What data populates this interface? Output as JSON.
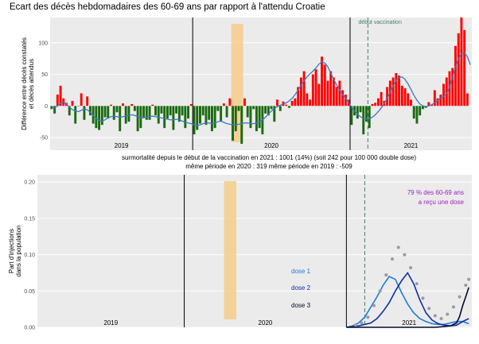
{
  "title": "Ecart des décès hebdomadaires des 60-69 ans par rapport à l'attendu Croatie",
  "colors": {
    "excess": "#ff0000",
    "deficit": "#1a6a0f",
    "smooth": "#3a78c8",
    "vacc_band": "#f5cc8a",
    "vacc_line": "#3f8070",
    "dose1": "#1d7bd6",
    "dose2": "#1030a0",
    "dose3": "#050a30",
    "dots": "#9a9a9a",
    "pct": "#a020c0",
    "panel": "#ebebeb",
    "grid": "#ffffff"
  },
  "chart_data": [
    {
      "type": "bar",
      "ylabel": [
        "Différence entre décès constatés",
        "et décès attendus"
      ],
      "ylim": [
        -70,
        140
      ],
      "yticks": [
        -50,
        0,
        50,
        100
      ],
      "year_labels": [
        "2019",
        "2020",
        "2021"
      ],
      "week_range": [
        0,
        142
      ],
      "vline_weeks": [
        48,
        101
      ],
      "vacc_band_weeks": [
        61,
        65
      ],
      "vacc_line_week": 107,
      "annotation": "début vaccination",
      "values": [
        -5,
        -12,
        18,
        32,
        12,
        5,
        -15,
        8,
        -28,
        0,
        20,
        -22,
        15,
        -15,
        -28,
        -35,
        -38,
        -30,
        -18,
        -20,
        2,
        -22,
        -10,
        -40,
        4,
        -28,
        -25,
        3,
        -8,
        -40,
        -35,
        -18,
        -22,
        -22,
        2,
        -15,
        -28,
        -12,
        -35,
        -20,
        -15,
        -38,
        -12,
        -25,
        -15,
        -35,
        -20,
        3,
        -45,
        -38,
        -28,
        -15,
        -30,
        -22,
        -40,
        -35,
        -8,
        -25,
        4,
        -18,
        12,
        -55,
        -40,
        -8,
        -60,
        12,
        -18,
        -35,
        -5,
        -40,
        -35,
        -45,
        -12,
        -15,
        -5,
        -25,
        10,
        -8,
        7,
        2,
        -3,
        8,
        12,
        30,
        45,
        55,
        20,
        10,
        50,
        58,
        35,
        78,
        65,
        40,
        55,
        45,
        30,
        40,
        25,
        18,
        10,
        -30,
        -15,
        -20,
        -10,
        -45,
        -25,
        -35,
        3,
        5,
        12,
        22,
        8,
        30,
        40,
        45,
        52,
        48,
        32,
        28,
        20,
        10,
        -20,
        -28,
        -15,
        -5,
        -3,
        6,
        2,
        25,
        12,
        18,
        35,
        45,
        55,
        60,
        95,
        115,
        140,
        120,
        20
      ],
      "smooth": [
        -2,
        -3,
        0,
        4,
        6,
        3,
        -2,
        -6,
        -8,
        -9,
        -7,
        -5,
        -6,
        -10,
        -15,
        -20,
        -23,
        -24,
        -22,
        -19,
        -17,
        -16,
        -17,
        -18,
        -17,
        -16,
        -15,
        -14,
        -15,
        -17,
        -19,
        -19,
        -18,
        -17,
        -16,
        -17,
        -18,
        -19,
        -20,
        -21,
        -22,
        -22,
        -21,
        -22,
        -24,
        -26,
        -27,
        -28,
        -30,
        -31,
        -30,
        -28,
        -27,
        -27,
        -28,
        -27,
        -25,
        -24,
        -26,
        -28,
        -29,
        -30,
        -30,
        -29,
        -28,
        -27,
        -27,
        -28,
        -28,
        -27,
        -25,
        -22,
        -18,
        -13,
        -8,
        -4,
        -1,
        1,
        3,
        5,
        8,
        12,
        18,
        25,
        33,
        40,
        46,
        51,
        55,
        60,
        66,
        70,
        68,
        62,
        52,
        42,
        33,
        25,
        18,
        12,
        5,
        -2,
        -8,
        -13,
        -17,
        -20,
        -21,
        -20,
        -18,
        -14,
        -9,
        -3,
        4,
        12,
        22,
        32,
        40,
        45,
        46,
        42,
        35,
        26,
        17,
        9,
        3,
        0,
        -1,
        0,
        2,
        5,
        9,
        12,
        15,
        20,
        30,
        45,
        62,
        75,
        83,
        84,
        78,
        65
      ]
    },
    {
      "type": "line",
      "ylabel": [
        "Part d'injections",
        "dans la population"
      ],
      "ylim": [
        0,
        0.21
      ],
      "yticks": [
        0.0,
        0.05,
        0.1,
        0.15,
        0.2
      ],
      "ytick_labels": [
        "0.00",
        "0.05",
        "0.10",
        "0.15",
        "0.20"
      ],
      "year_labels": [
        "2019",
        "2020",
        "2021"
      ],
      "series": [
        {
          "name": "dose 1",
          "weeks": [
            101,
            103,
            105,
            107,
            109,
            111,
            113,
            115,
            117,
            119,
            121,
            123,
            125,
            127,
            129,
            131,
            133,
            135,
            137,
            139,
            141
          ],
          "values": [
            0,
            0.002,
            0.006,
            0.014,
            0.028,
            0.042,
            0.058,
            0.07,
            0.066,
            0.048,
            0.032,
            0.02,
            0.012,
            0.008,
            0.005,
            0.004,
            0.004,
            0.006,
            0.008,
            0.008,
            0.005
          ]
        },
        {
          "name": "dose 2",
          "weeks": [
            101,
            105,
            109,
            111,
            113,
            115,
            117,
            119,
            121,
            123,
            125,
            127,
            129,
            131,
            133,
            135,
            137,
            139,
            141
          ],
          "values": [
            0,
            0.002,
            0.006,
            0.012,
            0.022,
            0.034,
            0.05,
            0.064,
            0.075,
            0.06,
            0.038,
            0.02,
            0.01,
            0.005,
            0.003,
            0.002,
            0.003,
            0.008,
            0.012
          ]
        },
        {
          "name": "dose 3",
          "weeks": [
            101,
            110,
            120,
            130,
            133,
            135,
            137,
            138,
            139,
            140,
            141
          ],
          "values": [
            0,
            0,
            0,
            0,
            0.001,
            0.002,
            0.006,
            0.015,
            0.03,
            0.042,
            0.055
          ]
        },
        {
          "name": "",
          "marker": "dots",
          "weeks": [
            104,
            106,
            108,
            110,
            112,
            114,
            116,
            118,
            120,
            122,
            124,
            126,
            128,
            130,
            132,
            134,
            136,
            138,
            140,
            141
          ],
          "values": [
            0.003,
            0.006,
            0.014,
            0.03,
            0.05,
            0.072,
            0.094,
            0.11,
            0.1,
            0.082,
            0.06,
            0.04,
            0.026,
            0.016,
            0.012,
            0.018,
            0.028,
            0.042,
            0.058,
            0.066
          ]
        }
      ],
      "annotation": [
        "79 % des 60-69 ans",
        "a reçu une dose"
      ]
    }
  ],
  "notes": {
    "line1": "surmortalité depuis le début de la vaccination en 2021 : 1001  (14%)       (soit 242 pour 100 000 double dose)",
    "line2": "même période en 2020 : 319          même période en 2019 : -509"
  }
}
